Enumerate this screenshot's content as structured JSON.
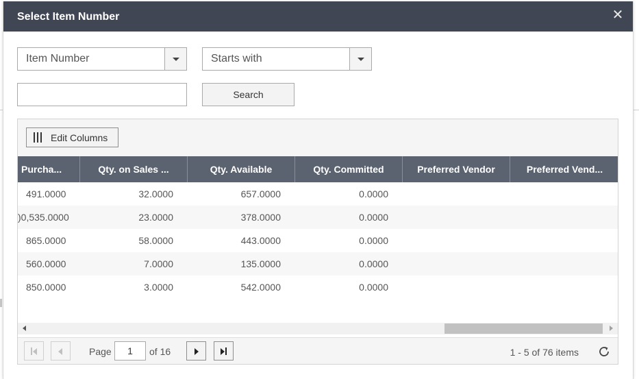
{
  "dialog": {
    "title": "Select Item Number",
    "close_icon": "close-icon"
  },
  "filter": {
    "field_select_value": "Item Number",
    "operator_select_value": "Starts with",
    "search_value": "",
    "search_button_label": "Search"
  },
  "grid": {
    "edit_columns_label": "Edit Columns",
    "columns": [
      {
        "label": "Purcha..."
      },
      {
        "label": "Qty. on Sales ..."
      },
      {
        "label": "Qty. Available"
      },
      {
        "label": "Qty. Committed"
      },
      {
        "label": "Preferred Vendor"
      },
      {
        "label": "Preferred Vend..."
      }
    ],
    "rows": [
      [
        "491.0000",
        "32.0000",
        "657.0000",
        "0.0000",
        "",
        ""
      ],
      [
        ")0,535.0000",
        "23.0000",
        "378.0000",
        "0.0000",
        "",
        ""
      ],
      [
        "865.0000",
        "58.0000",
        "443.0000",
        "0.0000",
        "",
        ""
      ],
      [
        "560.0000",
        "7.0000",
        "135.0000",
        "0.0000",
        "",
        ""
      ],
      [
        "850.0000",
        "3.0000",
        "542.0000",
        "0.0000",
        "",
        ""
      ]
    ]
  },
  "pager": {
    "page_label": "Page",
    "current_page": "1",
    "of_label": "of 16",
    "items_info": "1 - 5 of 76 items"
  }
}
